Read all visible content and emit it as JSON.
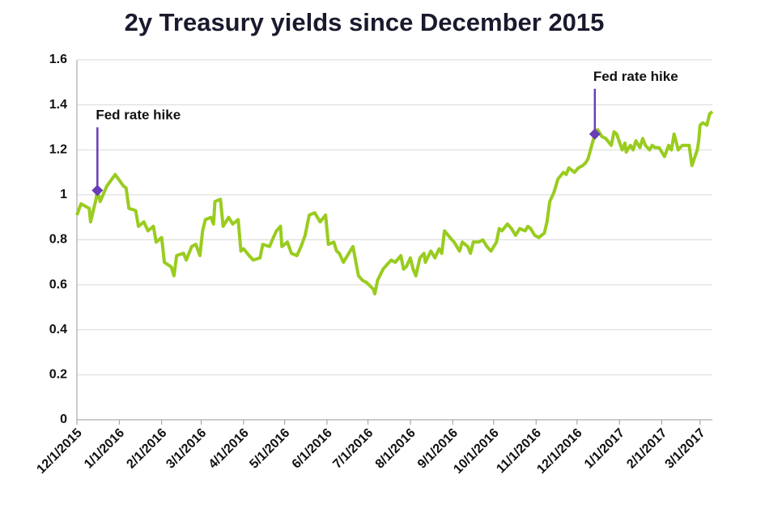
{
  "chart_data": {
    "type": "line",
    "title": "2y Treasury yields since December 2015",
    "x": [
      "12/1/2015",
      "12/4/2015",
      "12/10/2015",
      "12/11/2015",
      "12/15/2015",
      "12/16/2015",
      "12/18/2015",
      "12/23/2015",
      "12/29/2015",
      "1/4/2016",
      "1/6/2016",
      "1/8/2016",
      "1/13/2016",
      "1/15/2016",
      "1/19/2016",
      "1/22/2016",
      "1/26/2016",
      "1/28/2016",
      "2/1/2016",
      "2/3/2016",
      "2/8/2016",
      "2/10/2016",
      "2/12/2016",
      "2/17/2016",
      "2/19/2016",
      "2/23/2016",
      "2/26/2016",
      "2/29/2016",
      "3/2/2016",
      "3/4/2016",
      "3/8/2016",
      "3/10/2016",
      "3/11/2016",
      "3/15/2016",
      "3/17/2016",
      "3/21/2016",
      "3/24/2016",
      "3/28/2016",
      "3/30/2016",
      "4/1/2016",
      "4/5/2016",
      "4/8/2016",
      "4/13/2016",
      "4/15/2016",
      "4/20/2016",
      "4/22/2016",
      "4/25/2016",
      "4/28/2016",
      "4/29/2016",
      "5/3/2016",
      "5/6/2016",
      "5/10/2016",
      "5/13/2016",
      "5/16/2016",
      "5/19/2016",
      "5/23/2016",
      "5/25/2016",
      "5/27/2016",
      "5/31/2016",
      "6/2/2016",
      "6/6/2016",
      "6/8/2016",
      "6/10/2016",
      "6/13/2016",
      "6/17/2016",
      "6/20/2016",
      "6/24/2016",
      "6/27/2016",
      "6/30/2016",
      "7/5/2016",
      "7/6/2016",
      "7/8/2016",
      "7/12/2016",
      "7/15/2016",
      "7/18/2016",
      "7/21/2016",
      "7/25/2016",
      "7/27/2016",
      "7/29/2016",
      "8/1/2016",
      "8/3/2016",
      "8/5/2016",
      "8/8/2016",
      "8/11/2016",
      "8/12/2016",
      "8/16/2016",
      "8/19/2016",
      "8/22/2016",
      "8/24/2016",
      "8/26/2016",
      "8/30/2016",
      "9/2/2016",
      "9/6/2016",
      "9/8/2016",
      "9/12/2016",
      "9/14/2016",
      "9/16/2016",
      "9/20/2016",
      "9/23/2016",
      "9/26/2016",
      "9/29/2016",
      "10/3/2016",
      "10/5/2016",
      "10/7/2016",
      "10/11/2016",
      "10/14/2016",
      "10/17/2016",
      "10/20/2016",
      "10/24/2016",
      "10/26/2016",
      "10/28/2016",
      "10/31/2016",
      "11/3/2016",
      "11/7/2016",
      "11/9/2016",
      "11/11/2016",
      "11/14/2016",
      "11/17/2016",
      "11/21/2016",
      "11/23/2016",
      "11/25/2016",
      "11/29/2016",
      "12/2/2016",
      "12/5/2016",
      "12/7/2016",
      "12/9/2016",
      "12/14/2016",
      "12/16/2016",
      "12/19/2016",
      "12/22/2016",
      "12/26/2016",
      "12/28/2016",
      "12/30/2016",
      "1/3/2017",
      "1/5/2017",
      "1/6/2017",
      "1/9/2017",
      "1/11/2017",
      "1/13/2017",
      "1/16/2017",
      "1/18/2017",
      "1/20/2017",
      "1/23/2017",
      "1/25/2017",
      "1/27/2017",
      "1/30/2017",
      "2/2/2017",
      "2/3/2017",
      "2/6/2017",
      "2/8/2017",
      "2/10/2017",
      "2/13/2017",
      "2/16/2017",
      "2/20/2017",
      "2/21/2017",
      "2/23/2017",
      "2/27/2017",
      "2/28/2017",
      "3/1/2017",
      "3/3/2017",
      "3/6/2017",
      "3/8/2017",
      "3/10/2017"
    ],
    "values": [
      0.91,
      0.96,
      0.94,
      0.88,
      0.98,
      1.02,
      0.97,
      1.04,
      1.09,
      1.04,
      1.03,
      0.94,
      0.93,
      0.86,
      0.88,
      0.84,
      0.86,
      0.79,
      0.81,
      0.7,
      0.68,
      0.64,
      0.73,
      0.74,
      0.71,
      0.77,
      0.78,
      0.73,
      0.84,
      0.89,
      0.9,
      0.87,
      0.97,
      0.98,
      0.86,
      0.9,
      0.87,
      0.89,
      0.75,
      0.76,
      0.73,
      0.71,
      0.72,
      0.78,
      0.77,
      0.8,
      0.84,
      0.86,
      0.77,
      0.79,
      0.74,
      0.73,
      0.77,
      0.82,
      0.91,
      0.92,
      0.9,
      0.88,
      0.91,
      0.78,
      0.79,
      0.75,
      0.74,
      0.7,
      0.74,
      0.77,
      0.64,
      0.62,
      0.61,
      0.58,
      0.56,
      0.62,
      0.67,
      0.69,
      0.71,
      0.7,
      0.73,
      0.67,
      0.68,
      0.72,
      0.67,
      0.64,
      0.72,
      0.74,
      0.7,
      0.75,
      0.72,
      0.76,
      0.74,
      0.84,
      0.81,
      0.79,
      0.75,
      0.79,
      0.77,
      0.74,
      0.79,
      0.79,
      0.8,
      0.77,
      0.75,
      0.79,
      0.85,
      0.84,
      0.87,
      0.85,
      0.82,
      0.85,
      0.84,
      0.86,
      0.85,
      0.82,
      0.81,
      0.83,
      0.88,
      0.97,
      1.01,
      1.07,
      1.1,
      1.09,
      1.12,
      1.1,
      1.12,
      1.13,
      1.14,
      1.16,
      1.27,
      1.29,
      1.26,
      1.25,
      1.22,
      1.28,
      1.27,
      1.2,
      1.23,
      1.19,
      1.22,
      1.2,
      1.24,
      1.21,
      1.25,
      1.22,
      1.2,
      1.22,
      1.21,
      1.21,
      1.18,
      1.17,
      1.22,
      1.2,
      1.27,
      1.2,
      1.22,
      1.22,
      1.22,
      1.13,
      1.2,
      1.24,
      1.31,
      1.32,
      1.31,
      1.36,
      1.37
    ],
    "color": "#99cc1f",
    "xlim": [
      "12/1/2015",
      "3/10/2017"
    ],
    "xticks": [
      "12/1/2015",
      "1/1/2016",
      "2/1/2016",
      "3/1/2016",
      "4/1/2016",
      "5/1/2016",
      "6/1/2016",
      "7/1/2016",
      "8/1/2016",
      "9/1/2016",
      "10/1/2016",
      "11/1/2016",
      "12/1/2016",
      "1/1/2017",
      "2/1/2017",
      "3/1/2017"
    ],
    "ylim": [
      0,
      1.6
    ],
    "yticks": [
      0,
      0.2,
      0.4,
      0.6,
      0.8,
      1,
      1.2,
      1.4,
      1.6
    ],
    "grid": true,
    "annotations": [
      {
        "text": "Fed rate hike",
        "x": "12/16/2015",
        "value": 1.02,
        "color": "#6a3db8"
      },
      {
        "text": "Fed rate hike",
        "x": "12/14/2016",
        "value": 1.27,
        "color": "#6a3db8"
      }
    ]
  }
}
